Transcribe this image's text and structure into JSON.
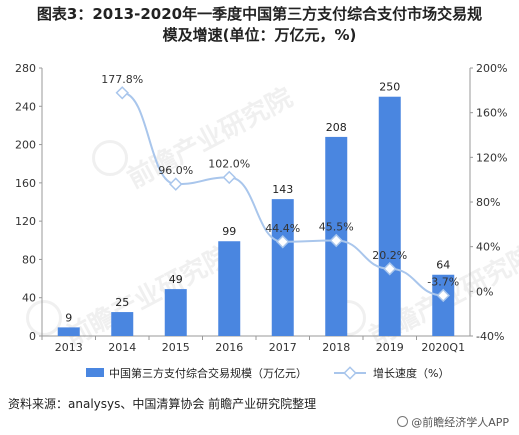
{
  "title": {
    "line1": "图表3：2013-2020年一季度中国第三方支付综合支付市场交易规",
    "line2": "模及增速(单位：万亿元，%)"
  },
  "chart_data": {
    "type": "bar",
    "categories": [
      "2013",
      "2014",
      "2015",
      "2016",
      "2017",
      "2018",
      "2019",
      "2020Q1"
    ],
    "series": [
      {
        "name": "中国第三方支付综合交易规模（万亿元）",
        "type": "bar",
        "axis": "left",
        "color": "#4a86e0",
        "values": [
          9,
          25,
          49,
          99,
          143,
          208,
          250,
          64
        ],
        "labels": [
          "9",
          "25",
          "49",
          "99",
          "143",
          "208",
          "250",
          "64"
        ]
      },
      {
        "name": "增长速度（%）",
        "type": "line",
        "axis": "right",
        "color": "#a9c6ec",
        "values": [
          null,
          177.8,
          96.0,
          102.0,
          44.4,
          45.5,
          20.2,
          -3.7
        ],
        "labels": [
          "",
          "177.8%",
          "96.0%",
          "102.0%",
          "44.4%",
          "45.5%",
          "20.2%",
          "-3.7%"
        ]
      }
    ],
    "y_left": {
      "min": 0,
      "max": 280,
      "ticks": [
        "0",
        "40",
        "80",
        "120",
        "160",
        "200",
        "240",
        "280"
      ]
    },
    "y_right": {
      "min": -40,
      "max": 200,
      "ticks": [
        "-40%",
        "0%",
        "40%",
        "80%",
        "120%",
        "160%",
        "200%"
      ]
    },
    "legend_position": "bottom",
    "grid": false
  },
  "source": "资料来源：analysys、中国清算协会 前瞻产业研究院整理",
  "brand": "@前瞻经济学人APP",
  "watermarks": [
    "前瞻产业研究院",
    "前瞻产业研究院",
    "前瞻产业研究院"
  ]
}
